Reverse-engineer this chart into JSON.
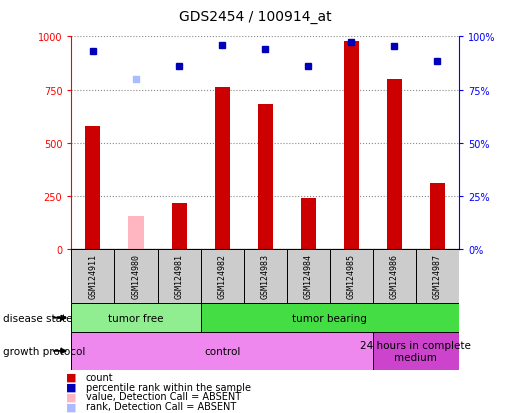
{
  "title": "GDS2454 / 100914_at",
  "samples": [
    "GSM124911",
    "GSM124980",
    "GSM124981",
    "GSM124982",
    "GSM124983",
    "GSM124984",
    "GSM124985",
    "GSM124986",
    "GSM124987"
  ],
  "count_values": [
    580,
    null,
    220,
    760,
    680,
    240,
    980,
    800,
    310
  ],
  "count_absent_values": [
    null,
    155,
    null,
    null,
    null,
    null,
    null,
    null,
    null
  ],
  "percentile_values": [
    93,
    null,
    86,
    96,
    94,
    86,
    97.5,
    95.5,
    88.5
  ],
  "percentile_absent_values": [
    null,
    80,
    null,
    null,
    null,
    null,
    null,
    null,
    null
  ],
  "disease_state": [
    {
      "label": "tumor free",
      "start": 0,
      "end": 3,
      "color": "#90EE90"
    },
    {
      "label": "tumor bearing",
      "start": 3,
      "end": 9,
      "color": "#44DD44"
    }
  ],
  "growth_protocol": [
    {
      "label": "control",
      "start": 0,
      "end": 7,
      "color": "#EE88EE"
    },
    {
      "label": "24 hours in complete\nmedium",
      "start": 7,
      "end": 9,
      "color": "#CC44CC"
    }
  ],
  "ylim_left": [
    0,
    1000
  ],
  "ylim_right": [
    0,
    100
  ],
  "bar_color": "#CC0000",
  "bar_absent_color": "#FFB6C1",
  "dot_color": "#0000BB",
  "dot_absent_color": "#AABBFF",
  "grid_color": "#888888",
  "bg_color": "#FFFFFF",
  "sample_box_color": "#CCCCCC",
  "bar_width": 0.35,
  "dot_size": 5
}
